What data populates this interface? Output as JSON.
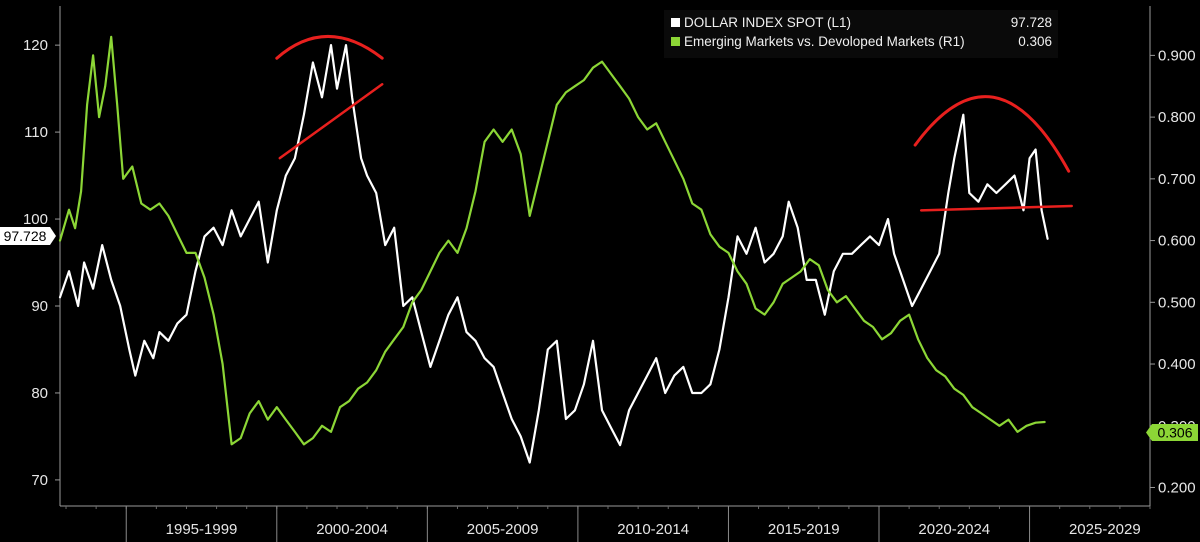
{
  "chart_data": {
    "type": "line",
    "background": "#000000",
    "x_categories": [
      "1995-1999",
      "2000-2004",
      "2005-2009",
      "2010-2014",
      "2015-2019",
      "2020-2024",
      "2025-2029"
    ],
    "x_range": [
      1992.8,
      2029.0
    ],
    "y_left": {
      "ticks": [
        70,
        80,
        90,
        100,
        110,
        120
      ],
      "range": [
        67,
        124.5
      ]
    },
    "y_right": {
      "ticks": [
        "0.200",
        "0.300",
        "0.400",
        "0.500",
        "0.600",
        "0.700",
        "0.800",
        "0.900"
      ],
      "range": [
        0.17,
        0.98
      ]
    },
    "legend": {
      "position": "top-right",
      "entries": [
        {
          "label": "DOLLAR INDEX SPOT (L1)",
          "value": "97.728",
          "color": "#ffffff"
        },
        {
          "label": "Emerging Markets vs. Devoloped Markets (R1)",
          "value": "0.306",
          "color": "#8cd636"
        }
      ]
    },
    "last_value_badges": {
      "left": "97.728",
      "right": "0.306"
    },
    "series": [
      {
        "name": "DOLLAR INDEX SPOT",
        "axis": "left",
        "color": "#ffffff",
        "points": [
          [
            1992.8,
            91
          ],
          [
            1993.1,
            94
          ],
          [
            1993.4,
            90
          ],
          [
            1993.6,
            95
          ],
          [
            1993.9,
            92
          ],
          [
            1994.2,
            97
          ],
          [
            1994.5,
            93
          ],
          [
            1994.8,
            90
          ],
          [
            1995.1,
            85
          ],
          [
            1995.3,
            82
          ],
          [
            1995.6,
            86
          ],
          [
            1995.9,
            84
          ],
          [
            1996.1,
            87
          ],
          [
            1996.4,
            86
          ],
          [
            1996.7,
            88
          ],
          [
            1997.0,
            89
          ],
          [
            1997.3,
            94
          ],
          [
            1997.6,
            98
          ],
          [
            1997.9,
            99
          ],
          [
            1998.2,
            97
          ],
          [
            1998.5,
            101
          ],
          [
            1998.8,
            98
          ],
          [
            1999.1,
            100
          ],
          [
            1999.4,
            102
          ],
          [
            1999.7,
            95
          ],
          [
            2000.0,
            101
          ],
          [
            2000.3,
            105
          ],
          [
            2000.6,
            107
          ],
          [
            2000.9,
            112
          ],
          [
            2001.2,
            118
          ],
          [
            2001.5,
            114
          ],
          [
            2001.8,
            120
          ],
          [
            2002.0,
            115
          ],
          [
            2002.3,
            120
          ],
          [
            2002.5,
            114
          ],
          [
            2002.8,
            107
          ],
          [
            2003.0,
            105
          ],
          [
            2003.3,
            103
          ],
          [
            2003.6,
            97
          ],
          [
            2003.9,
            99
          ],
          [
            2004.2,
            90
          ],
          [
            2004.5,
            91
          ],
          [
            2004.8,
            87
          ],
          [
            2005.1,
            83
          ],
          [
            2005.4,
            86
          ],
          [
            2005.7,
            89
          ],
          [
            2006.0,
            91
          ],
          [
            2006.3,
            87
          ],
          [
            2006.6,
            86
          ],
          [
            2006.9,
            84
          ],
          [
            2007.2,
            83
          ],
          [
            2007.5,
            80
          ],
          [
            2007.8,
            77
          ],
          [
            2008.1,
            75
          ],
          [
            2008.4,
            72
          ],
          [
            2008.7,
            78
          ],
          [
            2009.0,
            85
          ],
          [
            2009.3,
            86
          ],
          [
            2009.6,
            77
          ],
          [
            2009.9,
            78
          ],
          [
            2010.2,
            81
          ],
          [
            2010.5,
            86
          ],
          [
            2010.8,
            78
          ],
          [
            2011.1,
            76
          ],
          [
            2011.4,
            74
          ],
          [
            2011.7,
            78
          ],
          [
            2012.0,
            80
          ],
          [
            2012.3,
            82
          ],
          [
            2012.6,
            84
          ],
          [
            2012.9,
            80
          ],
          [
            2013.2,
            82
          ],
          [
            2013.5,
            83
          ],
          [
            2013.8,
            80
          ],
          [
            2014.1,
            80
          ],
          [
            2014.4,
            81
          ],
          [
            2014.7,
            85
          ],
          [
            2015.0,
            91
          ],
          [
            2015.3,
            98
          ],
          [
            2015.6,
            96
          ],
          [
            2015.9,
            99
          ],
          [
            2016.2,
            95
          ],
          [
            2016.5,
            96
          ],
          [
            2016.8,
            98
          ],
          [
            2017.0,
            102
          ],
          [
            2017.3,
            99
          ],
          [
            2017.6,
            93
          ],
          [
            2017.9,
            93
          ],
          [
            2018.2,
            89
          ],
          [
            2018.5,
            94
          ],
          [
            2018.8,
            96
          ],
          [
            2019.1,
            96
          ],
          [
            2019.4,
            97
          ],
          [
            2019.7,
            98
          ],
          [
            2020.0,
            97
          ],
          [
            2020.3,
            100
          ],
          [
            2020.5,
            96
          ],
          [
            2020.8,
            93
          ],
          [
            2021.1,
            90
          ],
          [
            2021.4,
            92
          ],
          [
            2021.7,
            94
          ],
          [
            2022.0,
            96
          ],
          [
            2022.3,
            103
          ],
          [
            2022.5,
            107
          ],
          [
            2022.8,
            112
          ],
          [
            2023.0,
            103
          ],
          [
            2023.3,
            102
          ],
          [
            2023.6,
            104
          ],
          [
            2023.9,
            103
          ],
          [
            2024.2,
            104
          ],
          [
            2024.5,
            105
          ],
          [
            2024.8,
            101
          ],
          [
            2025.0,
            107
          ],
          [
            2025.2,
            108
          ],
          [
            2025.4,
            101
          ],
          [
            2025.6,
            97.728
          ]
        ]
      },
      {
        "name": "Emerging Markets vs. Devoloped Markets",
        "axis": "right",
        "color": "#8cd636",
        "points": [
          [
            1992.8,
            0.6
          ],
          [
            1993.1,
            0.65
          ],
          [
            1993.3,
            0.62
          ],
          [
            1993.5,
            0.68
          ],
          [
            1993.7,
            0.82
          ],
          [
            1993.9,
            0.9
          ],
          [
            1994.1,
            0.8
          ],
          [
            1994.3,
            0.85
          ],
          [
            1994.5,
            0.93
          ],
          [
            1994.7,
            0.82
          ],
          [
            1994.9,
            0.7
          ],
          [
            1995.2,
            0.72
          ],
          [
            1995.5,
            0.66
          ],
          [
            1995.8,
            0.65
          ],
          [
            1996.1,
            0.66
          ],
          [
            1996.4,
            0.64
          ],
          [
            1996.7,
            0.61
          ],
          [
            1997.0,
            0.58
          ],
          [
            1997.3,
            0.58
          ],
          [
            1997.6,
            0.54
          ],
          [
            1997.9,
            0.48
          ],
          [
            1998.2,
            0.4
          ],
          [
            1998.5,
            0.27
          ],
          [
            1998.8,
            0.28
          ],
          [
            1999.1,
            0.32
          ],
          [
            1999.4,
            0.34
          ],
          [
            1999.7,
            0.31
          ],
          [
            2000.0,
            0.33
          ],
          [
            2000.3,
            0.31
          ],
          [
            2000.6,
            0.29
          ],
          [
            2000.9,
            0.27
          ],
          [
            2001.2,
            0.28
          ],
          [
            2001.5,
            0.3
          ],
          [
            2001.8,
            0.29
          ],
          [
            2002.1,
            0.33
          ],
          [
            2002.4,
            0.34
          ],
          [
            2002.7,
            0.36
          ],
          [
            2003.0,
            0.37
          ],
          [
            2003.3,
            0.39
          ],
          [
            2003.6,
            0.42
          ],
          [
            2003.9,
            0.44
          ],
          [
            2004.2,
            0.46
          ],
          [
            2004.5,
            0.5
          ],
          [
            2004.8,
            0.52
          ],
          [
            2005.1,
            0.55
          ],
          [
            2005.4,
            0.58
          ],
          [
            2005.7,
            0.6
          ],
          [
            2006.0,
            0.58
          ],
          [
            2006.3,
            0.62
          ],
          [
            2006.6,
            0.68
          ],
          [
            2006.9,
            0.76
          ],
          [
            2007.2,
            0.78
          ],
          [
            2007.5,
            0.76
          ],
          [
            2007.8,
            0.78
          ],
          [
            2008.1,
            0.74
          ],
          [
            2008.4,
            0.64
          ],
          [
            2008.7,
            0.7
          ],
          [
            2009.0,
            0.76
          ],
          [
            2009.3,
            0.82
          ],
          [
            2009.6,
            0.84
          ],
          [
            2009.9,
            0.85
          ],
          [
            2010.2,
            0.86
          ],
          [
            2010.5,
            0.88
          ],
          [
            2010.8,
            0.89
          ],
          [
            2011.1,
            0.87
          ],
          [
            2011.4,
            0.85
          ],
          [
            2011.7,
            0.83
          ],
          [
            2012.0,
            0.8
          ],
          [
            2012.3,
            0.78
          ],
          [
            2012.6,
            0.79
          ],
          [
            2012.9,
            0.76
          ],
          [
            2013.2,
            0.73
          ],
          [
            2013.5,
            0.7
          ],
          [
            2013.8,
            0.66
          ],
          [
            2014.1,
            0.65
          ],
          [
            2014.4,
            0.61
          ],
          [
            2014.7,
            0.59
          ],
          [
            2015.0,
            0.58
          ],
          [
            2015.3,
            0.55
          ],
          [
            2015.6,
            0.53
          ],
          [
            2015.9,
            0.49
          ],
          [
            2016.2,
            0.48
          ],
          [
            2016.5,
            0.5
          ],
          [
            2016.8,
            0.53
          ],
          [
            2017.1,
            0.54
          ],
          [
            2017.4,
            0.55
          ],
          [
            2017.7,
            0.57
          ],
          [
            2018.0,
            0.56
          ],
          [
            2018.3,
            0.52
          ],
          [
            2018.6,
            0.5
          ],
          [
            2018.9,
            0.51
          ],
          [
            2019.2,
            0.49
          ],
          [
            2019.5,
            0.47
          ],
          [
            2019.8,
            0.46
          ],
          [
            2020.1,
            0.44
          ],
          [
            2020.4,
            0.45
          ],
          [
            2020.7,
            0.47
          ],
          [
            2021.0,
            0.48
          ],
          [
            2021.3,
            0.44
          ],
          [
            2021.6,
            0.41
          ],
          [
            2021.9,
            0.39
          ],
          [
            2022.2,
            0.38
          ],
          [
            2022.5,
            0.36
          ],
          [
            2022.8,
            0.35
          ],
          [
            2023.1,
            0.33
          ],
          [
            2023.4,
            0.32
          ],
          [
            2023.7,
            0.31
          ],
          [
            2024.0,
            0.3
          ],
          [
            2024.3,
            0.31
          ],
          [
            2024.6,
            0.29
          ],
          [
            2024.9,
            0.3
          ],
          [
            2025.2,
            0.305
          ],
          [
            2025.5,
            0.306
          ]
        ]
      }
    ],
    "annotations": [
      {
        "kind": "arc",
        "color": "#e8201e",
        "axis": "left",
        "from": [
          2000.0,
          118.5
        ],
        "to": [
          2003.5,
          118.5
        ],
        "peak": [
          2001.7,
          121
        ]
      },
      {
        "kind": "line",
        "color": "#e8201e",
        "axis": "left",
        "from": [
          2000.1,
          107
        ],
        "to": [
          2003.5,
          115.5
        ]
      },
      {
        "kind": "arc",
        "color": "#e8201e",
        "axis": "left",
        "from": [
          2021.2,
          108.5
        ],
        "to": [
          2026.3,
          105.5
        ],
        "peak": [
          2023.8,
          114
        ]
      },
      {
        "kind": "line",
        "color": "#e8201e",
        "axis": "left",
        "from": [
          2021.4,
          101
        ],
        "to": [
          2026.4,
          101.5
        ]
      }
    ]
  }
}
